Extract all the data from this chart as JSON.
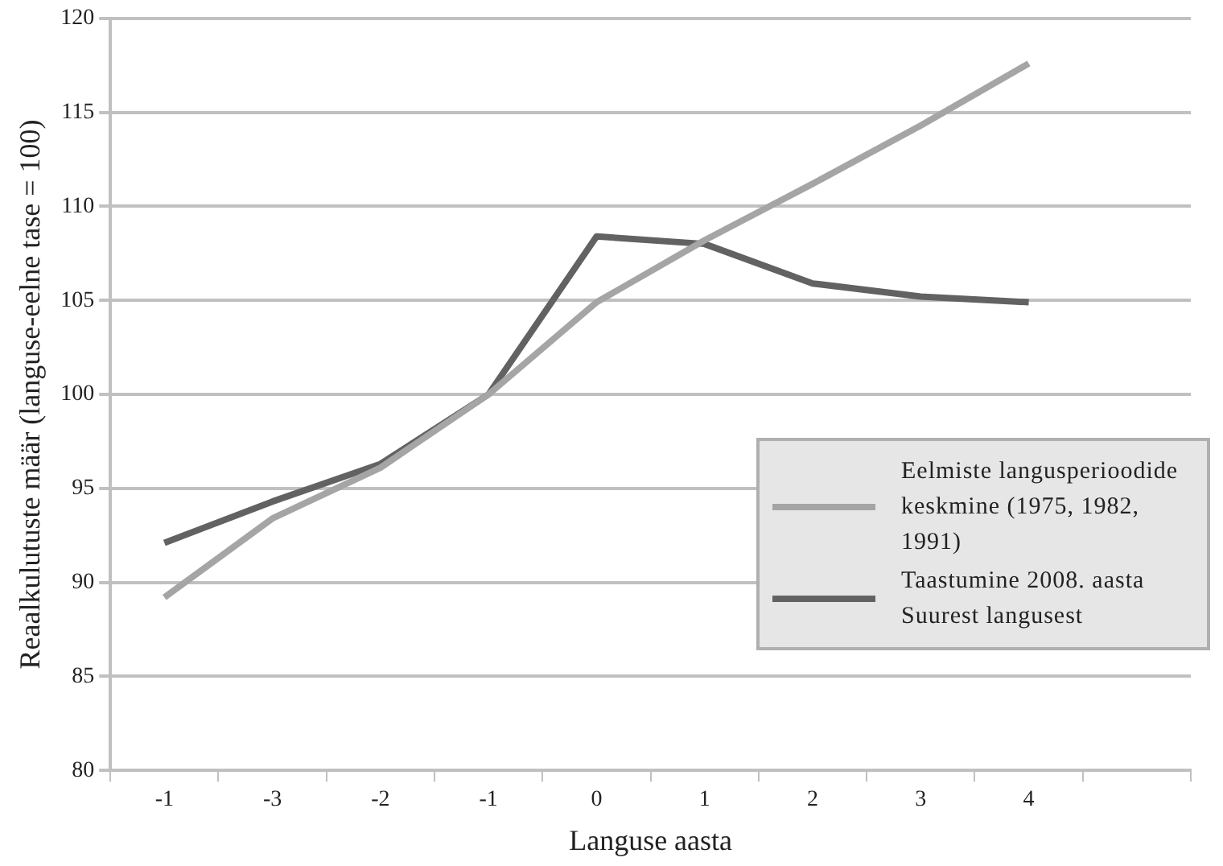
{
  "chart_data": {
    "type": "line",
    "xlabel": "Languse aasta",
    "ylabel": "Reaalkulutuste määr (languse-eelne tase = 100)",
    "categories": [
      "-1",
      "-3",
      "-2",
      "-1",
      "0",
      "1",
      "2",
      "3",
      "4",
      null
    ],
    "series": [
      {
        "name": "Eelmiste langusperioodide keskmine (1975, 1982, 1991)",
        "color": "#a5a5a5",
        "values": [
          89.2,
          93.4,
          96.1,
          100,
          104.9,
          108.2,
          111.2,
          114.3,
          117.6,
          null
        ]
      },
      {
        "name": "Taastumine 2008. aasta Suurest langusest",
        "color": "#626262",
        "values": [
          92.1,
          94.3,
          96.3,
          100,
          108.4,
          108.0,
          105.9,
          105.2,
          104.9,
          null
        ]
      }
    ],
    "ylim": [
      80,
      120
    ],
    "yticks": [
      80,
      85,
      90,
      95,
      100,
      105,
      110,
      115,
      120
    ],
    "grid": "y",
    "legend": "right",
    "marker": "none",
    "line_style": "solid"
  }
}
